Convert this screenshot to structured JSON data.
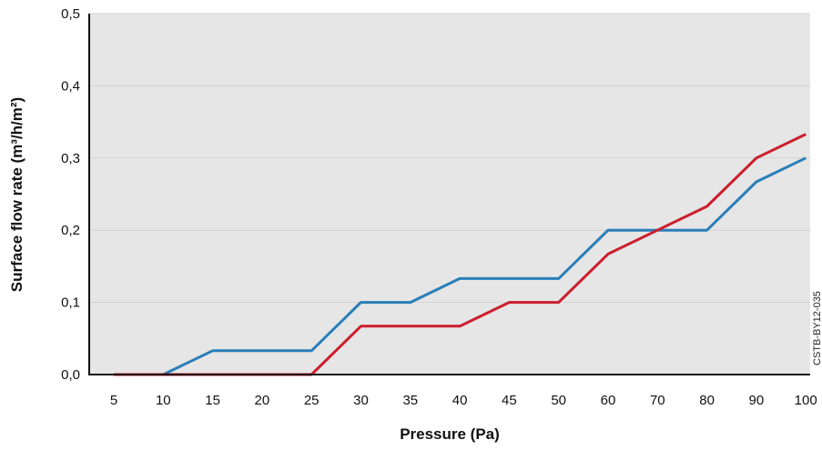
{
  "chart_data": {
    "type": "line",
    "xlabel": "Pressure (Pa)",
    "ylabel": "Surface flow rate (m³/h/m²)",
    "categories": [
      "5",
      "10",
      "15",
      "20",
      "25",
      "30",
      "35",
      "40",
      "45",
      "50",
      "60",
      "70",
      "80",
      "90",
      "100"
    ],
    "ylim": [
      0,
      0.5
    ],
    "y_ticks": [
      "0,0",
      "0,1",
      "0,2",
      "0,3",
      "0,4",
      "0,5"
    ],
    "y_tick_values": [
      0,
      0.1,
      0.2,
      0.3,
      0.4,
      0.5
    ],
    "grid": true,
    "series": [
      {
        "color": "#2a7fb8",
        "values": [
          0,
          0,
          0.033,
          0.033,
          0.033,
          0.1,
          0.1,
          0.133,
          0.133,
          0.133,
          0.2,
          0.2,
          0.2,
          0.267,
          0.3
        ]
      },
      {
        "color": "#cc1f2e",
        "values": [
          0,
          0,
          0,
          0,
          0,
          0.067,
          0.067,
          0.067,
          0.1,
          0.1,
          0.167,
          0.2,
          0.233,
          0.3,
          0.333
        ]
      }
    ],
    "annotations": [
      "CSTB-BY12-035"
    ],
    "plot_background": "#e6e6e6",
    "gridline_color": "#d2d2d2"
  }
}
